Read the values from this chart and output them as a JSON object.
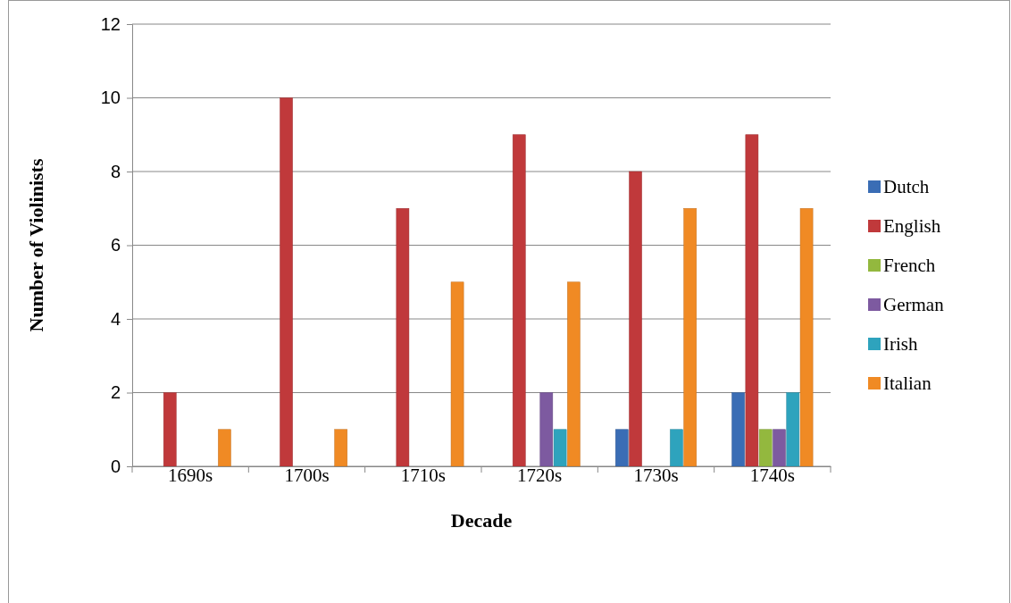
{
  "chart_data": {
    "type": "bar",
    "xlabel": "Decade",
    "ylabel": "Number of Violinists",
    "categories": [
      "1690s",
      "1700s",
      "1710s",
      "1720s",
      "1730s",
      "1740s"
    ],
    "series": [
      {
        "name": "Dutch",
        "color": "#3a6db5",
        "values": [
          0,
          0,
          0,
          0,
          1,
          2
        ]
      },
      {
        "name": "English",
        "color": "#c0393b",
        "values": [
          2,
          10,
          7,
          9,
          8,
          9
        ]
      },
      {
        "name": "French",
        "color": "#93b83e",
        "values": [
          0,
          0,
          0,
          0,
          0,
          1
        ]
      },
      {
        "name": "German",
        "color": "#7d5aa0",
        "values": [
          0,
          0,
          0,
          2,
          0,
          1
        ]
      },
      {
        "name": "Irish",
        "color": "#2ea3bd",
        "values": [
          0,
          0,
          0,
          1,
          1,
          2
        ]
      },
      {
        "name": "Italian",
        "color": "#f08a24",
        "values": [
          1,
          1,
          5,
          5,
          7,
          7
        ]
      }
    ],
    "ylim": [
      0,
      12
    ],
    "yticks": [
      0,
      2,
      4,
      6,
      8,
      10,
      12
    ],
    "grid": "y",
    "legend": "right"
  }
}
